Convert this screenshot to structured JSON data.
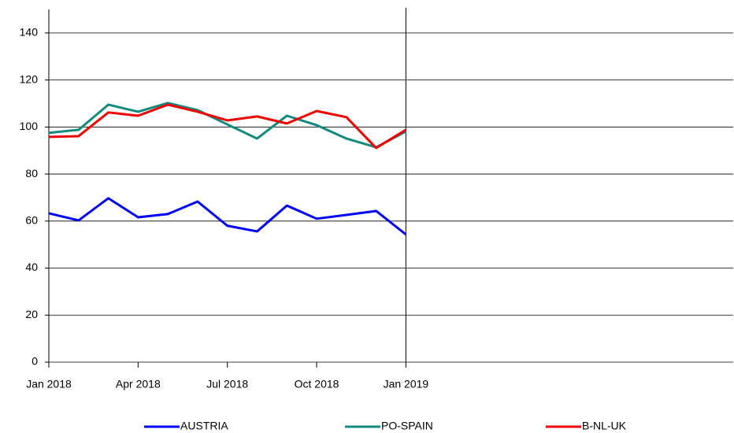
{
  "chart_data": {
    "type": "line",
    "x": [
      "2018-01",
      "2018-02",
      "2018-03",
      "2018-04",
      "2018-05",
      "2018-06",
      "2018-07",
      "2018-08",
      "2018-09",
      "2018-10",
      "2018-11",
      "2018-12",
      "2019-01"
    ],
    "series": [
      {
        "name": "AUSTRIA",
        "color": "#0000ff",
        "values": [
          63.3,
          60.3,
          69.7,
          61.6,
          63.0,
          68.3,
          58.0,
          55.6,
          66.6,
          61.0,
          62.6,
          64.3,
          54.3
        ]
      },
      {
        "name": "PO-SPAIN",
        "color": "#138a7e",
        "values": [
          97.5,
          98.8,
          109.5,
          106.5,
          110.2,
          107.2,
          101.1,
          95.1,
          104.8,
          100.8,
          95.1,
          91.4,
          98.1
        ]
      },
      {
        "name": "B-NL-UK",
        "color": "#ee0000",
        "values": [
          95.8,
          96.1,
          106.2,
          104.8,
          109.5,
          106.5,
          102.8,
          104.5,
          101.5,
          106.8,
          104.2,
          91.1,
          98.8
        ]
      }
    ],
    "xlim": [
      "2018-01",
      "2019-12"
    ],
    "xticks": [
      {
        "value": "2018-01",
        "label": "Jan 2018"
      },
      {
        "value": "2018-04",
        "label": "Apr 2018"
      },
      {
        "value": "2018-07",
        "label": "Jul 2018"
      },
      {
        "value": "2018-10",
        "label": "Oct 2018"
      },
      {
        "value": "2019-01",
        "label": "Jan 2019"
      }
    ],
    "ylim": [
      0,
      150
    ],
    "yticks": [
      0,
      20,
      40,
      60,
      80,
      100,
      120,
      140
    ],
    "grid": true,
    "marker_line": "2019-01",
    "legend": "bottom"
  }
}
